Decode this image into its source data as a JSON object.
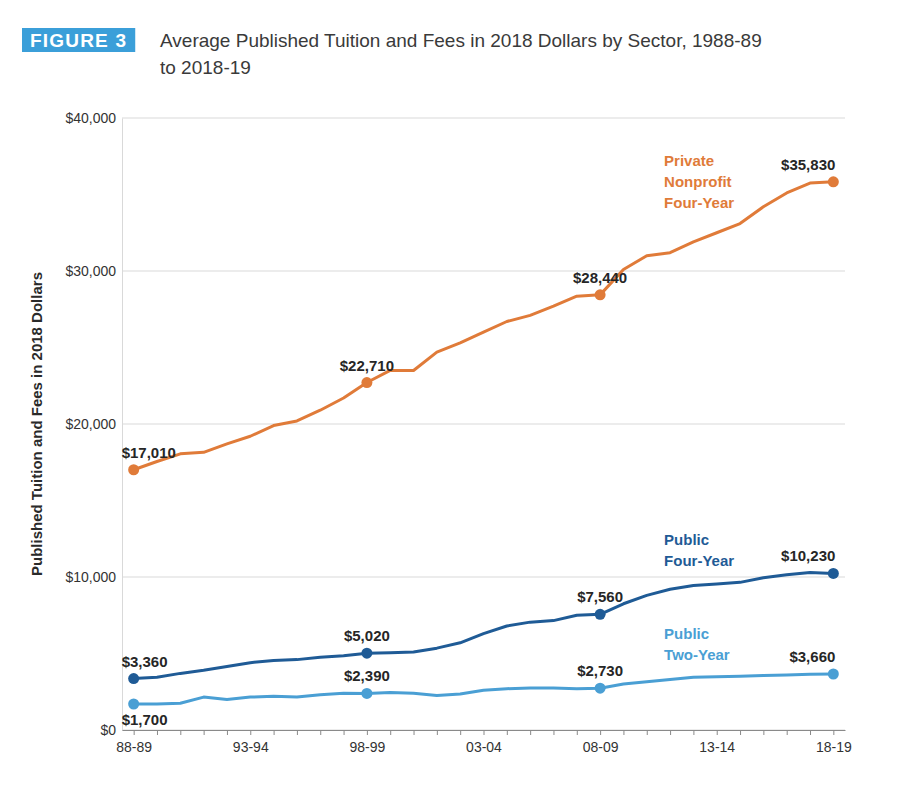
{
  "chart_data": {
    "type": "line",
    "figure_label": "FIGURE 3",
    "title": "Average Published Tuition and Fees in 2018 Dollars by Sector, 1988-89 to 2018-19",
    "y_label": "Published Tuition and Fees in 2018 Dollars",
    "categories": [
      "88-89",
      null,
      null,
      null,
      null,
      "93-94",
      null,
      null,
      null,
      null,
      "98-99",
      null,
      null,
      null,
      null,
      "03-04",
      null,
      null,
      null,
      null,
      "08-09",
      null,
      null,
      null,
      null,
      "13-14",
      null,
      null,
      null,
      null,
      "18-19"
    ],
    "series": [
      {
        "name": "Private Nonprofit Four-Year",
        "color": "#e07b39",
        "marker": "circle",
        "values": [
          17010,
          17550,
          18050,
          18150,
          18700,
          19200,
          19900,
          20200,
          20900,
          21700,
          22710,
          23500,
          23500,
          24700,
          25300,
          26000,
          26700,
          27100,
          27700,
          28350,
          28440,
          30100,
          31000,
          31200,
          31900,
          32500,
          33100,
          34200,
          35100,
          35750,
          35830
        ],
        "value_labels": [
          "$17,010",
          null,
          null,
          null,
          null,
          null,
          null,
          null,
          null,
          null,
          "$22,710",
          null,
          null,
          null,
          null,
          null,
          null,
          null,
          null,
          null,
          "$28,440",
          null,
          null,
          null,
          null,
          null,
          null,
          null,
          null,
          null,
          "$35,830"
        ]
      },
      {
        "name": "Public Four-Year",
        "color": "#1f5b96",
        "marker": "circle",
        "values": [
          3360,
          3450,
          3700,
          3900,
          4150,
          4400,
          4550,
          4600,
          4750,
          4850,
          5020,
          5050,
          5100,
          5350,
          5700,
          6300,
          6800,
          7050,
          7150,
          7500,
          7560,
          8250,
          8800,
          9200,
          9450,
          9550,
          9650,
          9950,
          10150,
          10300,
          10230
        ],
        "value_labels": [
          "$3,360",
          null,
          null,
          null,
          null,
          null,
          null,
          null,
          null,
          null,
          "$5,020",
          null,
          null,
          null,
          null,
          null,
          null,
          null,
          null,
          null,
          "$7,560",
          null,
          null,
          null,
          null,
          null,
          null,
          null,
          null,
          null,
          "$10,230"
        ]
      },
      {
        "name": "Public Two-Year",
        "color": "#4a9fd4",
        "marker": "circle",
        "values": [
          1700,
          1700,
          1750,
          2150,
          2000,
          2150,
          2200,
          2150,
          2300,
          2400,
          2390,
          2450,
          2400,
          2250,
          2350,
          2600,
          2700,
          2750,
          2750,
          2700,
          2730,
          3000,
          3150,
          3300,
          3450,
          3480,
          3520,
          3570,
          3600,
          3640,
          3660
        ],
        "value_labels": [
          "$1,700",
          null,
          null,
          null,
          null,
          null,
          null,
          null,
          null,
          null,
          "$2,390",
          null,
          null,
          null,
          null,
          null,
          null,
          null,
          null,
          null,
          "$2,730",
          null,
          null,
          null,
          null,
          null,
          null,
          null,
          null,
          null,
          "$3,660"
        ]
      }
    ],
    "ylim": [
      0,
      40000
    ],
    "yticks": [
      {
        "value": 0,
        "label": "$0"
      },
      {
        "value": 10000,
        "label": "$10,000"
      },
      {
        "value": 20000,
        "label": "$20,000"
      },
      {
        "value": 30000,
        "label": "$30,000"
      },
      {
        "value": 40000,
        "label": "$40,000"
      }
    ],
    "grid": true,
    "data_labels": true
  }
}
